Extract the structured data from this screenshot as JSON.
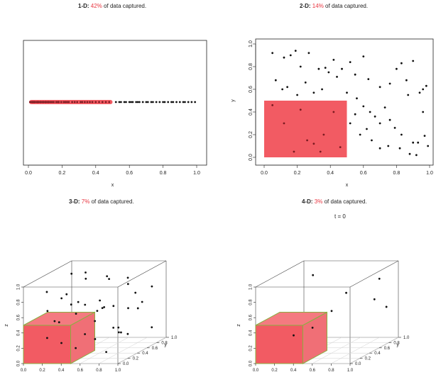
{
  "chart_data": [
    {
      "type": "scatter",
      "dimension": "1-D",
      "title": {
        "label": "1-D",
        "percent": "42%",
        "suffix": "of data captured."
      },
      "xlabel": "x",
      "xlim": [
        0,
        1
      ],
      "xticks": [
        "0.0",
        "0.2",
        "0.4",
        "0.6",
        "0.8",
        "1.0"
      ],
      "capture_region": {
        "x": [
          0,
          0.5
        ]
      },
      "points_x": [
        0.01,
        0.02,
        0.025,
        0.03,
        0.035,
        0.04,
        0.05,
        0.055,
        0.06,
        0.07,
        0.075,
        0.085,
        0.09,
        0.1,
        0.105,
        0.115,
        0.12,
        0.13,
        0.14,
        0.15,
        0.165,
        0.175,
        0.18,
        0.195,
        0.21,
        0.22,
        0.23,
        0.24,
        0.26,
        0.275,
        0.29,
        0.31,
        0.32,
        0.335,
        0.35,
        0.365,
        0.38,
        0.4,
        0.42,
        0.44,
        0.46,
        0.48,
        0.52,
        0.54,
        0.55,
        0.57,
        0.58,
        0.6,
        0.61,
        0.62,
        0.64,
        0.65,
        0.66,
        0.68,
        0.7,
        0.71,
        0.73,
        0.74,
        0.76,
        0.78,
        0.8,
        0.81,
        0.83,
        0.85,
        0.86,
        0.88,
        0.9,
        0.92,
        0.93,
        0.95,
        0.97,
        0.99
      ],
      "colors": {
        "highlight": "#f25b63",
        "point": "#111111"
      }
    },
    {
      "type": "scatter",
      "dimension": "2-D",
      "title": {
        "label": "2-D",
        "percent": "14%",
        "suffix": "of data captured."
      },
      "xlabel": "x",
      "ylabel": "y",
      "xlim": [
        0,
        1
      ],
      "ylim": [
        0,
        1
      ],
      "xticks": [
        "0.0",
        "0.2",
        "0.4",
        "0.6",
        "0.8",
        "1.0"
      ],
      "yticks": [
        "0.0",
        "0.2",
        "0.4",
        "0.6",
        "0.8",
        "1.0"
      ],
      "capture_region": {
        "x": [
          0,
          0.5
        ],
        "y": [
          0,
          0.5
        ]
      },
      "points": [
        [
          0.05,
          0.92
        ],
        [
          0.12,
          0.88
        ],
        [
          0.16,
          0.9
        ],
        [
          0.19,
          0.94
        ],
        [
          0.22,
          0.8
        ],
        [
          0.27,
          0.92
        ],
        [
          0.33,
          0.78
        ],
        [
          0.37,
          0.79
        ],
        [
          0.39,
          0.75
        ],
        [
          0.42,
          0.86
        ],
        [
          0.47,
          0.78
        ],
        [
          0.52,
          0.84
        ],
        [
          0.55,
          0.73
        ],
        [
          0.6,
          0.89
        ],
        [
          0.63,
          0.69
        ],
        [
          0.7,
          0.62
        ],
        [
          0.76,
          0.65
        ],
        [
          0.8,
          0.78
        ],
        [
          0.83,
          0.83
        ],
        [
          0.86,
          0.68
        ],
        [
          0.9,
          0.85
        ],
        [
          0.94,
          0.57
        ],
        [
          0.96,
          0.6
        ],
        [
          0.98,
          0.63
        ],
        [
          0.07,
          0.68
        ],
        [
          0.11,
          0.6
        ],
        [
          0.14,
          0.62
        ],
        [
          0.2,
          0.55
        ],
        [
          0.25,
          0.66
        ],
        [
          0.3,
          0.57
        ],
        [
          0.35,
          0.6
        ],
        [
          0.44,
          0.71
        ],
        [
          0.5,
          0.57
        ],
        [
          0.56,
          0.52
        ],
        [
          0.6,
          0.45
        ],
        [
          0.64,
          0.4
        ],
        [
          0.67,
          0.36
        ],
        [
          0.7,
          0.3
        ],
        [
          0.73,
          0.44
        ],
        [
          0.76,
          0.33
        ],
        [
          0.79,
          0.26
        ],
        [
          0.83,
          0.2
        ],
        [
          0.87,
          0.55
        ],
        [
          0.9,
          0.13
        ],
        [
          0.93,
          0.13
        ],
        [
          0.96,
          0.4
        ],
        [
          0.58,
          0.2
        ],
        [
          0.62,
          0.25
        ],
        [
          0.65,
          0.15
        ],
        [
          0.7,
          0.08
        ],
        [
          0.75,
          0.1
        ],
        [
          0.82,
          0.08
        ],
        [
          0.88,
          0.03
        ],
        [
          0.92,
          0.02
        ],
        [
          0.97,
          0.19
        ],
        [
          0.99,
          0.1
        ],
        [
          0.55,
          0.38
        ],
        [
          0.52,
          0.3
        ],
        [
          0.05,
          0.46
        ],
        [
          0.12,
          0.3
        ],
        [
          0.22,
          0.42
        ],
        [
          0.26,
          0.15
        ],
        [
          0.3,
          0.12
        ],
        [
          0.18,
          0.05
        ],
        [
          0.36,
          0.2
        ],
        [
          0.42,
          0.4
        ],
        [
          0.34,
          0.05
        ],
        [
          0.46,
          0.09
        ]
      ],
      "colors": {
        "highlight": "#f25b63",
        "point": "#111111"
      }
    },
    {
      "type": "scatter3d",
      "dimension": "3-D",
      "title": {
        "label": "3-D",
        "percent": "7%",
        "suffix": "of data captured."
      },
      "xlabel": "",
      "ylabel": "y",
      "zlabel": "z",
      "xticks": [
        "0.0",
        "0.2",
        "0.4",
        "0.6",
        "0.8",
        "1.0"
      ],
      "yticks": [
        "0.0",
        "0.2",
        "0.4",
        "0.6",
        "0.8",
        "1.0"
      ],
      "zticks": [
        "0.0",
        "0.2",
        "0.4",
        "0.6",
        "0.8",
        "1.0"
      ],
      "capture_region": {
        "x": [
          0,
          0.5
        ],
        "y": [
          0,
          0.5
        ],
        "z": [
          0,
          0.5
        ]
      },
      "points": [
        [
          0.1,
          0.8,
          0.9
        ],
        [
          0.2,
          0.9,
          0.8
        ],
        [
          0.3,
          0.7,
          0.95
        ],
        [
          0.45,
          0.85,
          0.85
        ],
        [
          0.6,
          0.6,
          0.9
        ],
        [
          0.75,
          0.7,
          0.8
        ],
        [
          0.85,
          0.5,
          0.95
        ],
        [
          0.9,
          0.9,
          0.7
        ],
        [
          0.15,
          0.6,
          0.7
        ],
        [
          0.25,
          0.3,
          0.75
        ],
        [
          0.35,
          0.45,
          0.65
        ],
        [
          0.55,
          0.2,
          0.7
        ],
        [
          0.65,
          0.4,
          0.6
        ],
        [
          0.8,
          0.3,
          0.65
        ],
        [
          0.95,
          0.6,
          0.6
        ],
        [
          0.05,
          0.4,
          0.55
        ],
        [
          0.4,
          0.8,
          0.55
        ],
        [
          0.5,
          0.55,
          0.5
        ],
        [
          0.7,
          0.8,
          0.45
        ],
        [
          0.85,
          0.2,
          0.4
        ],
        [
          0.6,
          0.1,
          0.35
        ],
        [
          0.75,
          0.5,
          0.3
        ],
        [
          0.9,
          0.4,
          0.25
        ],
        [
          0.95,
          0.8,
          0.2
        ],
        [
          0.65,
          0.75,
          0.15
        ],
        [
          0.55,
          0.9,
          0.1
        ],
        [
          0.8,
          0.15,
          0.1
        ],
        [
          0.3,
          0.2,
          0.2
        ],
        [
          0.2,
          0.1,
          0.3
        ],
        [
          0.4,
          0.3,
          0.1
        ],
        [
          0.1,
          0.45,
          0.4
        ],
        [
          0.45,
          0.6,
          0.35
        ],
        [
          0.35,
          0.95,
          0.4
        ],
        [
          0.25,
          0.5,
          0.6
        ],
        [
          0.12,
          0.25,
          0.85
        ],
        [
          0.7,
          0.95,
          0.6
        ],
        [
          0.58,
          0.35,
          0.2
        ],
        [
          0.88,
          0.65,
          0.5
        ],
        [
          0.02,
          0.7,
          0.3
        ],
        [
          0.48,
          0.15,
          0.6
        ]
      ],
      "colors": {
        "highlight": "#f25b63",
        "point": "#111111",
        "edge": "#8ab040"
      }
    },
    {
      "type": "scatter3d",
      "dimension": "4-D",
      "title": {
        "label": "4-D",
        "percent": "3%",
        "suffix": "of data captured."
      },
      "subtitle": "t = 0",
      "xlabel": "",
      "ylabel": "y",
      "zlabel": "z",
      "xticks": [
        "0.0",
        "0.2",
        "0.4",
        "0.6",
        "0.8",
        "1.0"
      ],
      "yticks": [
        "0.0",
        "0.2",
        "0.4",
        "0.6",
        "0.8",
        "1.0"
      ],
      "zticks": [
        "0.0",
        "0.2",
        "0.4",
        "0.6",
        "0.8",
        "1.0"
      ],
      "capture_region": {
        "x": [
          0,
          0.5
        ],
        "y": [
          0,
          0.5
        ],
        "z": [
          0,
          0.5
        ]
      },
      "points": [
        [
          0.3,
          0.6,
          0.95
        ],
        [
          0.85,
          0.9,
          0.8
        ],
        [
          0.9,
          0.7,
          0.6
        ],
        [
          0.6,
          0.4,
          0.55
        ],
        [
          0.5,
          0.2,
          0.4
        ],
        [
          0.3,
          0.2,
          0.3
        ],
        [
          0.95,
          0.85,
          0.45
        ],
        [
          0.55,
          0.8,
          0.65
        ]
      ],
      "colors": {
        "highlight": "#f25b63",
        "point": "#111111",
        "edge": "#8ab040"
      }
    }
  ]
}
